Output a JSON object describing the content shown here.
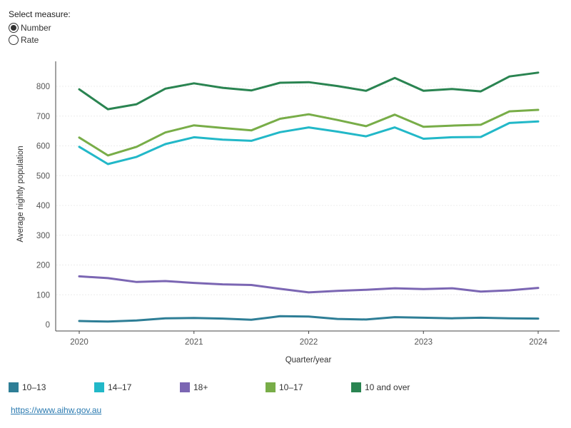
{
  "measure": {
    "title": "Select measure:",
    "options": [
      {
        "label": "Number",
        "selected": true
      },
      {
        "label": "Rate",
        "selected": false
      }
    ]
  },
  "chart_data": {
    "type": "line",
    "xlabel": "Quarter/year",
    "ylabel": "Average nightly population",
    "x_ticks": [
      "2020",
      "2021",
      "2022",
      "2023",
      "2024"
    ],
    "y_ticks": [
      "0",
      "100",
      "200",
      "300",
      "400",
      "500",
      "600",
      "700",
      "800"
    ],
    "ylim": [
      0,
      880
    ],
    "x_count": 17,
    "series": [
      {
        "name": "10–13",
        "color": "#2e7e96",
        "values": [
          12,
          10,
          14,
          21,
          22,
          20,
          16,
          28,
          27,
          19,
          17,
          25,
          23,
          21,
          23,
          21,
          20
        ]
      },
      {
        "name": "14–17",
        "color": "#22b8c8",
        "values": [
          597,
          539,
          563,
          606,
          629,
          621,
          617,
          646,
          662,
          648,
          632,
          662,
          624,
          629,
          630,
          677,
          682
        ]
      },
      {
        "name": "18+",
        "color": "#7b66b3",
        "values": [
          162,
          156,
          143,
          146,
          140,
          135,
          133,
          120,
          108,
          113,
          117,
          122,
          119,
          122,
          111,
          115,
          123
        ]
      },
      {
        "name": "10–17",
        "color": "#78ad48",
        "values": [
          628,
          568,
          597,
          645,
          669,
          660,
          652,
          691,
          706,
          687,
          666,
          705,
          664,
          668,
          671,
          716,
          721
        ]
      },
      {
        "name": "10 and over",
        "color": "#2a8451",
        "values": [
          790,
          723,
          740,
          792,
          810,
          795,
          786,
          812,
          814,
          801,
          785,
          828,
          785,
          791,
          783,
          833,
          846
        ]
      }
    ]
  },
  "source": {
    "link_text": "https://www.aihw.gov.au"
  }
}
